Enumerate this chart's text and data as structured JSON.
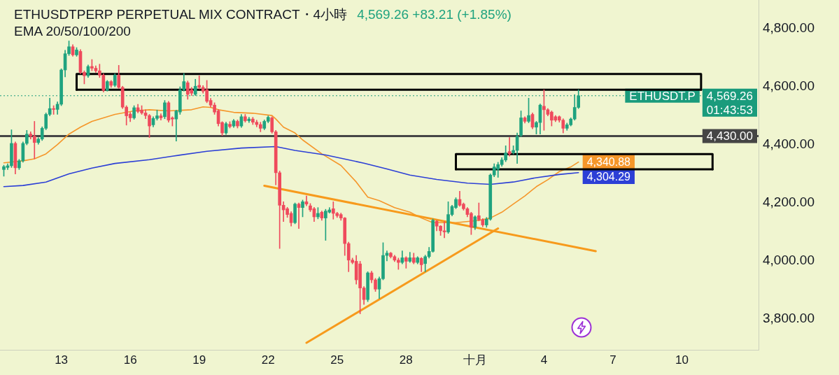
{
  "chart_data": {
    "type": "candlestick",
    "title": "ETHUSDTPERP PERPETUAL MIX CONTRACT・4小時",
    "subtitle": "EMA 20/50/100/200",
    "x": [
      "--09-10T12:00",
      "--09-10T16:00",
      "--09-10T20:00",
      "--09-11T00:00",
      "--09-11T04:00",
      "--09-11T08:00",
      "--09-11T12:00",
      "--09-11T16:00",
      "--09-11T20:00",
      "--09-12T00:00",
      "--09-12T04:00",
      "--09-12T08:00",
      "--09-12T12:00",
      "--09-12T16:00",
      "--09-12T20:00",
      "--09-13T00:00",
      "--09-13T04:00",
      "--09-13T08:00",
      "--09-13T12:00",
      "--09-13T16:00",
      "--09-13T20:00",
      "--09-14T00:00",
      "--09-14T04:00",
      "--09-14T08:00",
      "--09-14T12:00",
      "--09-14T16:00",
      "--09-14T20:00",
      "--09-15T00:00",
      "--09-15T04:00",
      "--09-15T08:00",
      "--09-15T12:00",
      "--09-15T16:00",
      "--09-15T20:00",
      "--09-16T00:00",
      "--09-16T04:00",
      "--09-16T08:00",
      "--09-16T12:00",
      "--09-16T16:00",
      "--09-16T20:00",
      "--09-17T00:00",
      "--09-17T04:00",
      "--09-17T08:00",
      "--09-17T12:00",
      "--09-17T16:00",
      "--09-17T20:00",
      "--09-18T00:00",
      "--09-18T04:00",
      "--09-18T08:00",
      "--09-18T12:00",
      "--09-18T16:00",
      "--09-18T20:00",
      "--09-19T00:00",
      "--09-19T04:00",
      "--09-19T08:00",
      "--09-19T12:00",
      "--09-19T16:00",
      "--09-19T20:00",
      "--09-20T00:00",
      "--09-20T04:00",
      "--09-20T08:00",
      "--09-20T12:00",
      "--09-20T16:00",
      "--09-20T20:00",
      "--09-21T00:00",
      "--09-21T04:00",
      "--09-21T08:00",
      "--09-21T12:00",
      "--09-21T16:00",
      "--09-21T20:00",
      "--09-22T00:00",
      "--09-22T04:00",
      "--09-22T08:00",
      "--09-22T12:00",
      "--09-22T16:00",
      "--09-22T20:00",
      "--09-23T00:00",
      "--09-23T04:00",
      "--09-23T08:00",
      "--09-23T12:00",
      "--09-23T16:00",
      "--09-23T20:00",
      "--09-24T00:00",
      "--09-24T04:00",
      "--09-24T08:00",
      "--09-24T12:00",
      "--09-24T16:00",
      "--09-24T20:00",
      "--09-25T00:00",
      "--09-25T04:00",
      "--09-25T08:00",
      "--09-25T12:00",
      "--09-25T16:00",
      "--09-25T20:00",
      "--09-26T00:00",
      "--09-26T04:00",
      "--09-26T08:00",
      "--09-26T12:00",
      "--09-26T16:00",
      "--09-26T20:00",
      "--09-27T00:00",
      "--09-27T04:00",
      "--09-27T08:00",
      "--09-27T12:00",
      "--09-27T16:00",
      "--09-27T20:00",
      "--09-28T00:00",
      "--09-28T04:00",
      "--09-28T08:00",
      "--09-28T12:00",
      "--09-28T16:00",
      "--09-28T20:00",
      "--09-29T00:00",
      "--09-29T04:00",
      "--09-29T08:00",
      "--09-29T12:00",
      "--09-29T16:00",
      "--09-29T20:00",
      "--09-30T00:00",
      "--09-30T04:00",
      "--09-30T08:00",
      "--09-30T12:00",
      "--09-30T16:00",
      "--09-30T20:00",
      "--10-01T00:00",
      "--10-01T04:00",
      "--10-01T08:00",
      "--10-01T12:00",
      "--10-01T16:00",
      "--10-01T20:00",
      "--10-02T00:00",
      "--10-02T04:00",
      "--10-02T08:00",
      "--10-02T12:00",
      "--10-02T16:00",
      "--10-02T20:00",
      "--10-03T00:00",
      "--10-03T04:00",
      "--10-03T08:00",
      "--10-03T12:00",
      "--10-03T16:00",
      "--10-03T20:00",
      "--10-04T00:00",
      "--10-04T04:00",
      "--10-04T08:00",
      "--10-04T12:00",
      "--10-04T16:00",
      "--10-04T20:00",
      "--10-05T00:00",
      "--10-05T04:00",
      "--10-05T08:00",
      "--10-05T12:00"
    ],
    "ohlc": [
      [
        4315,
        4330,
        4292,
        4325
      ],
      [
        4322,
        4335,
        4315,
        4328
      ],
      [
        4328,
        4452,
        4322,
        4405
      ],
      [
        4405,
        4410,
        4300,
        4321
      ],
      [
        4321,
        4350,
        4315,
        4345
      ],
      [
        4345,
        4410,
        4340,
        4405
      ],
      [
        4405,
        4450,
        4400,
        4437
      ],
      [
        4437,
        4445,
        4420,
        4430
      ],
      [
        4430,
        4481,
        4352,
        4408
      ],
      [
        4408,
        4425,
        4402,
        4420
      ],
      [
        4420,
        4462,
        4415,
        4457
      ],
      [
        4457,
        4510,
        4452,
        4505
      ],
      [
        4505,
        4561,
        4500,
        4525
      ],
      [
        4525,
        4535,
        4505,
        4522
      ],
      [
        4522,
        4548,
        4505,
        4540
      ],
      [
        4540,
        4662,
        4535,
        4658
      ],
      [
        4658,
        4726,
        4634,
        4714
      ],
      [
        4714,
        4758,
        4708,
        4738
      ],
      [
        4738,
        4745,
        4705,
        4710
      ],
      [
        4710,
        4735,
        4705,
        4727
      ],
      [
        4722,
        4728,
        4645,
        4650
      ],
      [
        4650,
        4655,
        4610,
        4638
      ],
      [
        4638,
        4675,
        4632,
        4670
      ],
      [
        4670,
        4694,
        4655,
        4664
      ],
      [
        4664,
        4672,
        4650,
        4655
      ],
      [
        4655,
        4678,
        4632,
        4640
      ],
      [
        4640,
        4645,
        4582,
        4588
      ],
      [
        4588,
        4622,
        4585,
        4618
      ],
      [
        4618,
        4622,
        4598,
        4605
      ],
      [
        4605,
        4645,
        4600,
        4640
      ],
      [
        4640,
        4674,
        4594,
        4598
      ],
      [
        4598,
        4602,
        4525,
        4530
      ],
      [
        4530,
        4535,
        4468,
        4500
      ],
      [
        4506,
        4512,
        4480,
        4493
      ],
      [
        4493,
        4535,
        4488,
        4528
      ],
      [
        4528,
        4540,
        4510,
        4515
      ],
      [
        4520,
        4535,
        4505,
        4510
      ],
      [
        4510,
        4521,
        4490,
        4501
      ],
      [
        4501,
        4505,
        4425,
        4465
      ],
      [
        4469,
        4497,
        4462,
        4491
      ],
      [
        4491,
        4520,
        4485,
        4500
      ],
      [
        4500,
        4507,
        4485,
        4493
      ],
      [
        4497,
        4553,
        4490,
        4545
      ],
      [
        4545,
        4550,
        4478,
        4485
      ],
      [
        4493,
        4497,
        4465,
        4489
      ],
      [
        4489,
        4520,
        4413,
        4517
      ],
      [
        4513,
        4600,
        4505,
        4590
      ],
      [
        4590,
        4646,
        4585,
        4618
      ],
      [
        4614,
        4620,
        4557,
        4574
      ],
      [
        4590,
        4598,
        4570,
        4578
      ],
      [
        4574,
        4626,
        4570,
        4602
      ],
      [
        4605,
        4638,
        4592,
        4598
      ],
      [
        4598,
        4604,
        4578,
        4585
      ],
      [
        4590,
        4622,
        4545,
        4550
      ],
      [
        4553,
        4560,
        4530,
        4537
      ],
      [
        4537,
        4545,
        4505,
        4513
      ],
      [
        4517,
        4522,
        4465,
        4473
      ],
      [
        4477,
        4480,
        4432,
        4441
      ],
      [
        4441,
        4478,
        4436,
        4473
      ],
      [
        4471,
        4480,
        4458,
        4463
      ],
      [
        4465,
        4488,
        4460,
        4483
      ],
      [
        4481,
        4486,
        4458,
        4465
      ],
      [
        4465,
        4505,
        4460,
        4497
      ],
      [
        4497,
        4505,
        4478,
        4483
      ],
      [
        4483,
        4495,
        4477,
        4489
      ],
      [
        4489,
        4495,
        4470,
        4478
      ],
      [
        4478,
        4485,
        4462,
        4470
      ],
      [
        4470,
        4478,
        4445,
        4457
      ],
      [
        4457,
        4486,
        4452,
        4481
      ],
      [
        4481,
        4500,
        4476,
        4495
      ],
      [
        4493,
        4497,
        4440,
        4445
      ],
      [
        4445,
        4450,
        4262,
        4304
      ],
      [
        4304,
        4310,
        4043,
        4192
      ],
      [
        4192,
        4204,
        4136,
        4176
      ],
      [
        4180,
        4185,
        4150,
        4160
      ],
      [
        4164,
        4170,
        4120,
        4132
      ],
      [
        4132,
        4200,
        4128,
        4196
      ],
      [
        4196,
        4200,
        4112,
        4184
      ],
      [
        4184,
        4210,
        4152,
        4204
      ],
      [
        4204,
        4224,
        4190,
        4196
      ],
      [
        4190,
        4198,
        4170,
        4176
      ],
      [
        4180,
        4185,
        4136,
        4152
      ],
      [
        4152,
        4184,
        4145,
        4164
      ],
      [
        4168,
        4172,
        4140,
        4148
      ],
      [
        4148,
        4178,
        4071,
        4172
      ],
      [
        4168,
        4184,
        4165,
        4176
      ],
      [
        4180,
        4204,
        4144,
        4164
      ],
      [
        4164,
        4168,
        4150,
        4156
      ],
      [
        4160,
        4165,
        4140,
        4148
      ],
      [
        4148,
        4150,
        4019,
        4060
      ],
      [
        4060,
        4065,
        3963,
        4003
      ],
      [
        4003,
        4010,
        3990,
        3995
      ],
      [
        3999,
        4019,
        3920,
        3935
      ],
      [
        3990,
        3999,
        3818,
        3907
      ],
      [
        3907,
        3912,
        3850,
        3867
      ],
      [
        3867,
        3963,
        3860,
        3959
      ],
      [
        3959,
        3965,
        3925,
        3935
      ],
      [
        3935,
        3940,
        3895,
        3903
      ],
      [
        3903,
        3945,
        3871,
        3939
      ],
      [
        3939,
        4063,
        3935,
        4019
      ],
      [
        4019,
        4035,
        4000,
        4027
      ],
      [
        4027,
        4030,
        4010,
        4015
      ],
      [
        4015,
        4020,
        3998,
        4003
      ],
      [
        4003,
        4010,
        3971,
        3995
      ],
      [
        3995,
        4035,
        3990,
        4011
      ],
      [
        4011,
        4015,
        3975,
        3999
      ],
      [
        3999,
        4030,
        3995,
        4011
      ],
      [
        4011,
        4027,
        3990,
        3995
      ],
      [
        3995,
        4015,
        3990,
        4011
      ],
      [
        4009,
        4012,
        3963,
        3987
      ],
      [
        3991,
        4020,
        3963,
        4015
      ],
      [
        4015,
        4047,
        4010,
        4033
      ],
      [
        4033,
        4145,
        4030,
        4140
      ],
      [
        4137,
        4140,
        4104,
        4120
      ],
      [
        4120,
        4122,
        4088,
        4104
      ],
      [
        4104,
        4136,
        4080,
        4100
      ],
      [
        4100,
        4204,
        4095,
        4160
      ],
      [
        4160,
        4192,
        4155,
        4188
      ],
      [
        4184,
        4218,
        4180,
        4212
      ],
      [
        4212,
        4240,
        4188,
        4192
      ],
      [
        4196,
        4200,
        4175,
        4180
      ],
      [
        4180,
        4184,
        4152,
        4160
      ],
      [
        4164,
        4168,
        4091,
        4116
      ],
      [
        4116,
        4156,
        4108,
        4152
      ],
      [
        4156,
        4200,
        4138,
        4142
      ],
      [
        4142,
        4146,
        4118,
        4124
      ],
      [
        4124,
        4150,
        4116,
        4144
      ],
      [
        4144,
        4300,
        4140,
        4296
      ],
      [
        4296,
        4335,
        4290,
        4324
      ],
      [
        4316,
        4340,
        4288,
        4332
      ],
      [
        4332,
        4356,
        4326,
        4348
      ],
      [
        4348,
        4397,
        4342,
        4372
      ],
      [
        4377,
        4425,
        4361,
        4369
      ],
      [
        4373,
        4397,
        4368,
        4381
      ],
      [
        4381,
        4441,
        4336,
        4429
      ],
      [
        4433,
        4517,
        4428,
        4493
      ],
      [
        4493,
        4497,
        4475,
        4481
      ],
      [
        4481,
        4561,
        4476,
        4501
      ],
      [
        4505,
        4510,
        4455,
        4461
      ],
      [
        4461,
        4481,
        4437,
        4477
      ],
      [
        4477,
        4541,
        4437,
        4537
      ],
      [
        4533,
        4590,
        4450,
        4521
      ],
      [
        4521,
        4525,
        4500,
        4505
      ],
      [
        4513,
        4517,
        4465,
        4485
      ],
      [
        4497,
        4501,
        4480,
        4485
      ],
      [
        4497,
        4500,
        4478,
        4485
      ],
      [
        4485,
        4490,
        4441,
        4457
      ],
      [
        4457,
        4475,
        4450,
        4469
      ],
      [
        4469,
        4493,
        4465,
        4489
      ],
      [
        4489,
        4573,
        4485,
        4529
      ],
      [
        4529,
        4590,
        4525,
        4569.26
      ]
    ],
    "colors": [
      "#1fa37f",
      "#1fa37f",
      "#1fa37f",
      "#ef4a5c",
      "#1fa37f",
      "#1fa37f",
      "#1fa37f",
      "#ef4a5c",
      "#ef4a5c",
      "#1fa37f",
      "#1fa37f",
      "#1fa37f",
      "#1fa37f",
      "#ef4a5c",
      "#1fa37f",
      "#1fa37f",
      "#1fa37f",
      "#1fa37f",
      "#ef4a5c",
      "#1fa37f",
      "#ef4a5c",
      "#ef4a5c",
      "#1fa37f",
      "#ef4a5c",
      "#ef4a5c",
      "#ef4a5c",
      "#ef4a5c",
      "#1fa37f",
      "#ef4a5c",
      "#1fa37f",
      "#ef4a5c",
      "#ef4a5c",
      "#ef4a5c",
      "#ef4a5c",
      "#1fa37f",
      "#ef4a5c",
      "#ef4a5c",
      "#ef4a5c",
      "#ef4a5c",
      "#1fa37f",
      "#1fa37f",
      "#ef4a5c",
      "#1fa37f",
      "#ef4a5c",
      "#ef4a5c",
      "#1fa37f",
      "#1fa37f",
      "#1fa37f",
      "#ef4a5c",
      "#ef4a5c",
      "#1fa37f",
      "#ef4a5c",
      "#ef4a5c",
      "#ef4a5c",
      "#ef4a5c",
      "#ef4a5c",
      "#ef4a5c",
      "#ef4a5c",
      "#1fa37f",
      "#ef4a5c",
      "#1fa37f",
      "#ef4a5c",
      "#1fa37f",
      "#ef4a5c",
      "#1fa37f",
      "#ef4a5c",
      "#ef4a5c",
      "#ef4a5c",
      "#1fa37f",
      "#1fa37f",
      "#ef4a5c",
      "#ef4a5c",
      "#ef4a5c",
      "#ef4a5c",
      "#ef4a5c",
      "#ef4a5c",
      "#1fa37f",
      "#ef4a5c",
      "#1fa37f",
      "#ef4a5c",
      "#ef4a5c",
      "#ef4a5c",
      "#1fa37f",
      "#ef4a5c",
      "#1fa37f",
      "#1fa37f",
      "#ef4a5c",
      "#ef4a5c",
      "#ef4a5c",
      "#ef4a5c",
      "#ef4a5c",
      "#ef4a5c",
      "#ef4a5c",
      "#ef4a5c",
      "#ef4a5c",
      "#1fa37f",
      "#ef4a5c",
      "#ef4a5c",
      "#1fa37f",
      "#1fa37f",
      "#1fa37f",
      "#ef4a5c",
      "#ef4a5c",
      "#ef4a5c",
      "#1fa37f",
      "#ef4a5c",
      "#1fa37f",
      "#ef4a5c",
      "#1fa37f",
      "#ef4a5c",
      "#1fa37f",
      "#1fa37f",
      "#1fa37f",
      "#ef4a5c",
      "#ef4a5c",
      "#ef4a5c",
      "#1fa37f",
      "#1fa37f",
      "#1fa37f",
      "#ef4a5c",
      "#ef4a5c",
      "#ef4a5c",
      "#ef4a5c",
      "#1fa37f",
      "#ef4a5c",
      "#ef4a5c",
      "#1fa37f",
      "#1fa37f",
      "#1fa37f",
      "#1fa37f",
      "#1fa37f",
      "#1fa37f",
      "#ef4a5c",
      "#1fa37f",
      "#1fa37f",
      "#1fa37f",
      "#ef4a5c",
      "#1fa37f",
      "#ef4a5c",
      "#1fa37f",
      "#1fa37f",
      "#ef4a5c",
      "#ef4a5c",
      "#ef4a5c",
      "#ef4a5c",
      "#ef4a5c",
      "#ef4a5c",
      "#1fa37f",
      "#1fa37f",
      "#1fa37f",
      "#1fa37f"
    ],
    "series": [
      {
        "type": "line",
        "color": "#f5962a",
        "x": [
          "--09-10T12:00",
          "--09-11T08:00",
          "--09-11T20:00",
          "--09-12T08:00",
          "--09-12T20:00",
          "--09-13T08:00",
          "--09-13T20:00",
          "--09-14T08:00",
          "--09-14T20:00",
          "--09-15T08:00",
          "--09-16T04:00",
          "--09-16T20:00",
          "--09-17T16:00",
          "--09-18T16:00",
          "--09-19T04:00",
          "--09-19T12:00",
          "--09-19T20:00",
          "--09-20T12:00",
          "--09-21T08:00",
          "--09-22T04:00",
          "--09-22T08:00",
          "--09-22T16:00",
          "--09-23T04:00",
          "--09-23T12:00",
          "--09-24T08:00",
          "--09-25T04:00",
          "--09-25T20:00",
          "--09-26T08:00",
          "--09-26T20:00",
          "--09-27T12:00",
          "--09-28T04:00",
          "--09-28T16:00",
          "--09-29T04:00",
          "--09-30T04:00",
          "--10-01T04:00",
          "--10-01T16:00",
          "--10-02T04:00",
          "--10-02T16:00",
          "--10-03T04:00",
          "--10-03T16:00",
          "--10-04T04:00",
          "--10-04T16:00",
          "--10-05T04:00",
          "--10-05T12:00"
        ],
        "values": [
          4338,
          4345,
          4352,
          4369,
          4401,
          4437,
          4461,
          4481,
          4493,
          4505,
          4517,
          4521,
          4517,
          4521,
          4531,
          4529,
          4521,
          4512,
          4509,
          4501,
          4489,
          4461,
          4441,
          4417,
          4369,
          4329,
          4272,
          4220,
          4208,
          4184,
          4168,
          4148,
          4132,
          4132,
          4140,
          4148,
          4168,
          4196,
          4224,
          4256,
          4280,
          4308,
          4324,
          4340.88
        ],
        "value_labels": [
          null,
          null,
          null,
          null,
          null,
          null,
          null,
          null,
          null,
          null,
          null,
          null,
          null,
          null,
          null,
          null,
          null,
          null,
          null,
          null,
          null,
          null,
          null,
          null,
          null,
          null,
          null,
          null,
          null,
          null,
          null,
          null,
          null,
          null,
          null,
          null,
          null,
          null,
          null,
          null,
          null,
          null,
          null,
          "4,340.88"
        ]
      },
      {
        "type": "line",
        "color": "#2c3fd6",
        "x": [
          "--09-10T12:00",
          "--09-11T08:00",
          "--09-12T08:00",
          "--09-13T08:00",
          "--09-14T08:00",
          "--09-15T08:00",
          "--09-16T20:00",
          "--09-17T20:00",
          "--09-19T08:00",
          "--09-20T20:00",
          "--09-22T08:00",
          "--09-23T04:00",
          "--09-24T12:00",
          "--09-26T04:00",
          "--09-27T04:00",
          "--09-28T04:00",
          "--09-29T08:00",
          "--09-30T16:00",
          "--10-01T16:00",
          "--10-02T16:00",
          "--10-03T16:00",
          "--10-04T16:00",
          "--10-05T12:00"
        ],
        "values": [
          4256,
          4260,
          4272,
          4300,
          4320,
          4336,
          4349,
          4361,
          4378,
          4389,
          4394,
          4381,
          4365,
          4337,
          4317,
          4296,
          4281,
          4268,
          4264,
          4272,
          4287,
          4298,
          4304.29
        ],
        "value_labels": [
          null,
          null,
          null,
          null,
          null,
          null,
          null,
          null,
          null,
          null,
          null,
          null,
          null,
          null,
          null,
          null,
          null,
          null,
          null,
          null,
          null,
          null,
          "4,304.29"
        ]
      },
      {
        "type": "line",
        "color": "#f79a1c",
        "x": [
          "--09-21T20:00",
          "--10-06T06:00"
        ],
        "values": [
          4259,
          4034
        ]
      },
      {
        "type": "line",
        "color": "#f79a1c",
        "x": [
          "--09-23T16:00",
          "--10-02T00:00"
        ],
        "values": [
          3718,
          4112
        ]
      },
      {
        "type": "line",
        "color": "#000000",
        "x": [
          "--09-13T16:00",
          "--09-13T16:00",
          "--10-10T20:00",
          "--10-10T20:00"
        ],
        "values": [
          4590,
          4644,
          4644,
          4590
        ]
      },
      {
        "type": "line",
        "color": "#000000",
        "x": [
          "--09-13T16:00",
          "--10-10T20:00"
        ],
        "values": [
          4590,
          4590
        ]
      },
      {
        "type": "line",
        "color": "#000000",
        "x": [
          "--09-30T04:00",
          "--09-30T04:00",
          "--10-11T08:00",
          "--10-11T08:00"
        ],
        "values": [
          4316,
          4368,
          4368,
          4316
        ]
      },
      {
        "type": "line",
        "color": "#000000",
        "x": [
          "--09-30T04:00",
          "--10-11T08:00"
        ],
        "values": [
          4316,
          4316
        ]
      }
    ],
    "xlim": [
      "--09-10T08:00",
      "--10-13T08:00"
    ],
    "xticks": [
      {
        "value": "--09-13",
        "label": "13"
      },
      {
        "value": "--09-16",
        "label": "16"
      },
      {
        "value": "--09-19",
        "label": "19"
      },
      {
        "value": "--09-22",
        "label": "22"
      },
      {
        "value": "--09-25",
        "label": "25"
      },
      {
        "value": "--09-28",
        "label": "28"
      },
      {
        "value": "--10-01",
        "label": "十月"
      },
      {
        "value": "--10-04",
        "label": "4"
      },
      {
        "value": "--10-07",
        "label": "7"
      },
      {
        "value": "--10-10",
        "label": "10"
      }
    ],
    "ylim": [
      3694,
      4899
    ],
    "yticks": [
      {
        "value": 3800,
        "label": "3,800.00"
      },
      {
        "value": 4000,
        "label": "4,000.00"
      },
      {
        "value": 4200,
        "label": "4,200.00"
      },
      {
        "value": 4400,
        "label": "4,400.00"
      },
      {
        "value": 4600,
        "label": "4,600.00"
      },
      {
        "value": 4800,
        "label": "4,800.00"
      }
    ],
    "ref_lines": [
      {
        "axis": "y",
        "value": 4569.26,
        "label": "4,569.26",
        "color": "#1a9b7c",
        "line_style": "dotted"
      },
      {
        "axis": "y",
        "value": 4430,
        "label": "4,430.00",
        "color": "#454545"
      }
    ],
    "annotations": [
      "4,569.26 +83.21 (+1.85%)",
      "ETHUSDT.P",
      "01:43:53"
    ]
  }
}
